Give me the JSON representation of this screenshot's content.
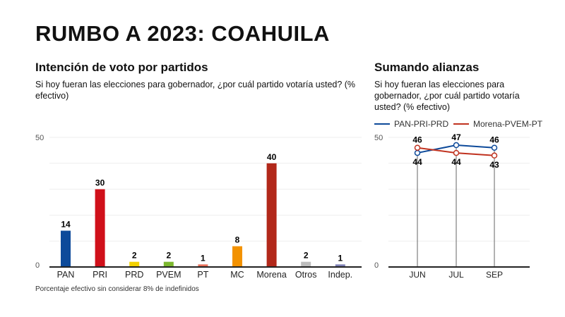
{
  "title": "RUMBO A 2023: COAHUILA",
  "chart_data": [
    {
      "type": "bar",
      "title": "Intención de voto por partidos",
      "subtitle": "Si hoy fueran las elecciones para gobernador, ¿por cuál partido votaría usted? (% efectivo)",
      "categories": [
        "PAN",
        "PRI",
        "PRD",
        "PVEM",
        "PT",
        "MC",
        "Morena",
        "Otros",
        "Indep."
      ],
      "values": [
        14,
        30,
        2,
        2,
        1,
        8,
        40,
        2,
        1
      ],
      "colors": [
        "#0d4a9a",
        "#d0101a",
        "#f2d100",
        "#7cb82f",
        "#e8705a",
        "#f39200",
        "#b2281a",
        "#bdbdbd",
        "#7d7fb3"
      ],
      "ylim": [
        0,
        50
      ],
      "yticks": [
        "0",
        "50"
      ],
      "grid": true,
      "footnote": "Porcentaje efectivo sin considerar 8% de indefinidos"
    },
    {
      "type": "line",
      "title": "Sumando alianzas",
      "subtitle": "Si hoy fueran las elecciones para gobernador, ¿por cuál partido votaría usted? (% efectivo)",
      "categories": [
        "JUN",
        "JUL",
        "SEP"
      ],
      "series": [
        {
          "name": "PAN-PRI-PRD",
          "values": [
            44,
            47,
            46
          ],
          "color": "#0d4a9a"
        },
        {
          "name": "Morena-PVEM-PT",
          "values": [
            46,
            44,
            43
          ],
          "color": "#c0321f"
        }
      ],
      "ylim": [
        0,
        50
      ],
      "yticks": [
        "0",
        "50"
      ],
      "grid": true,
      "legend": "top"
    }
  ]
}
